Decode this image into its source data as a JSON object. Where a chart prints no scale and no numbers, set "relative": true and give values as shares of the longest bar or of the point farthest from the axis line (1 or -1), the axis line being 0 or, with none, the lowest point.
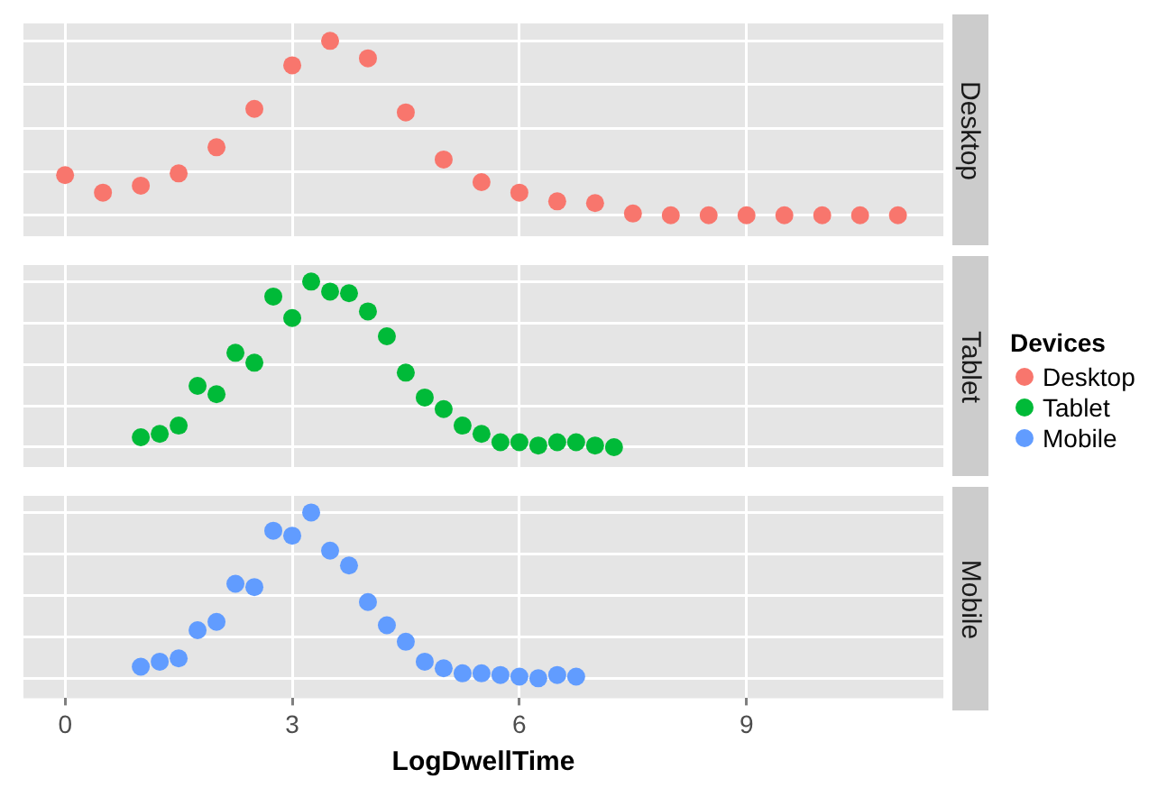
{
  "chart_data": [
    {
      "type": "scatter",
      "relative": true,
      "legend": "right",
      "legend_title": "Devices",
      "grid": true,
      "marker": "circle",
      "tick_labels": false,
      "xlim": [
        -0.55,
        11.6
      ],
      "xticks": [
        0,
        3,
        6,
        9
      ],
      "series": [
        {
          "name": "Desktop",
          "color": "#f8766d",
          "x": [
            0,
            0.5,
            1,
            1.5,
            2,
            2.5,
            3,
            3.5,
            4,
            4.5,
            5,
            5.5,
            6,
            6.5,
            7,
            7.5,
            8,
            8.5,
            9,
            9.5,
            10,
            10.5,
            11
          ],
          "values": [
            0.23,
            0.13,
            0.17,
            0.24,
            0.39,
            0.61,
            0.86,
            1,
            0.9,
            0.59,
            0.32,
            0.19,
            0.13,
            0.08,
            0.07,
            0.01,
            0,
            0,
            0,
            0,
            0,
            0,
            0
          ]
        }
      ]
    },
    {
      "type": "scatter",
      "relative": true,
      "grid": true,
      "marker": "circle",
      "tick_labels": false,
      "xlim": [
        -0.55,
        11.6
      ],
      "xticks": [
        0,
        3,
        6,
        9
      ],
      "series": [
        {
          "name": "Tablet",
          "color": "#00ba38",
          "x": [
            1,
            1.25,
            1.5,
            1.75,
            2,
            2.25,
            2.5,
            2.75,
            3,
            3.25,
            3.5,
            3.75,
            4,
            4.25,
            4.5,
            4.75,
            5,
            5.25,
            5.5,
            5.75,
            6,
            6.25,
            6.5,
            6.75,
            7,
            7.25
          ],
          "values": [
            0.06,
            0.08,
            0.13,
            0.37,
            0.32,
            0.57,
            0.51,
            0.91,
            0.78,
            1,
            0.94,
            0.93,
            0.82,
            0.67,
            0.45,
            0.3,
            0.23,
            0.13,
            0.08,
            0.03,
            0.03,
            0.01,
            0.03,
            0.03,
            0.01,
            0
          ]
        }
      ]
    },
    {
      "type": "scatter",
      "relative": true,
      "grid": true,
      "marker": "circle",
      "tick_labels": "x",
      "xlabel": "LogDwellTime",
      "xlim": [
        -0.55,
        11.6
      ],
      "xticks": [
        0,
        3,
        6,
        9
      ],
      "series": [
        {
          "name": "Mobile",
          "color": "#619cff",
          "x": [
            1,
            1.25,
            1.5,
            1.75,
            2,
            2.25,
            2.5,
            2.75,
            3,
            3.25,
            3.5,
            3.75,
            4,
            4.25,
            4.5,
            4.75,
            5,
            5.25,
            5.5,
            5.75,
            6,
            6.25,
            6.5,
            6.75
          ],
          "values": [
            0.07,
            0.1,
            0.12,
            0.29,
            0.34,
            0.57,
            0.55,
            0.89,
            0.86,
            1,
            0.77,
            0.68,
            0.46,
            0.32,
            0.22,
            0.1,
            0.06,
            0.03,
            0.03,
            0.02,
            0.01,
            0,
            0.02,
            0.01
          ]
        }
      ]
    }
  ]
}
